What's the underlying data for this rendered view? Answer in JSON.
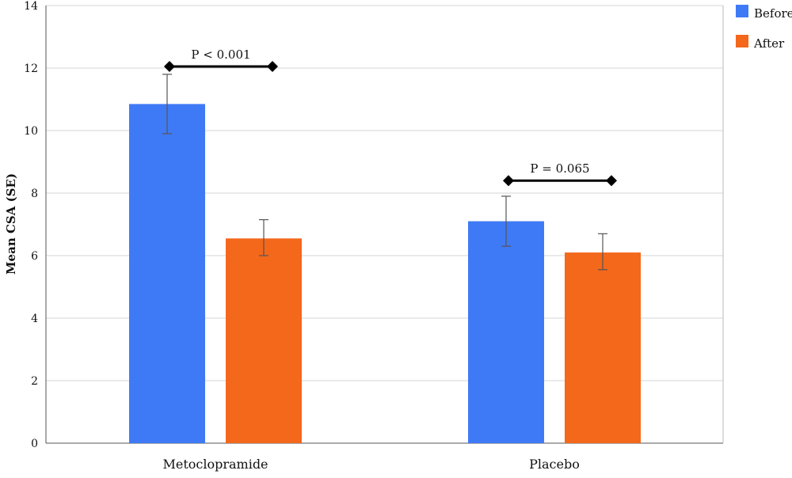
{
  "chart_data": {
    "type": "bar",
    "categories": [
      "Metoclopramide",
      "Placebo"
    ],
    "series": [
      {
        "name": "Before",
        "color": "#3f7af6",
        "values": [
          10.85,
          7.1
        ],
        "err_low": [
          9.9,
          6.3
        ],
        "err_high": [
          11.8,
          7.9
        ]
      },
      {
        "name": "After",
        "color": "#f4681c",
        "values": [
          6.55,
          6.1
        ],
        "err_low": [
          6.0,
          5.55
        ],
        "err_high": [
          7.15,
          6.7
        ]
      }
    ],
    "ylabel": "Mean CSA (SE)",
    "ylim": [
      0,
      14
    ],
    "yticks": [
      0,
      2,
      4,
      6,
      8,
      10,
      12,
      14
    ],
    "grid": true,
    "legend_position": "top-right",
    "annotations": [
      {
        "category": "Metoclopramide",
        "text": "P < 0.001",
        "y": 12.05
      },
      {
        "category": "Placebo",
        "text": "P = 0.065",
        "y": 8.4
      }
    ]
  }
}
